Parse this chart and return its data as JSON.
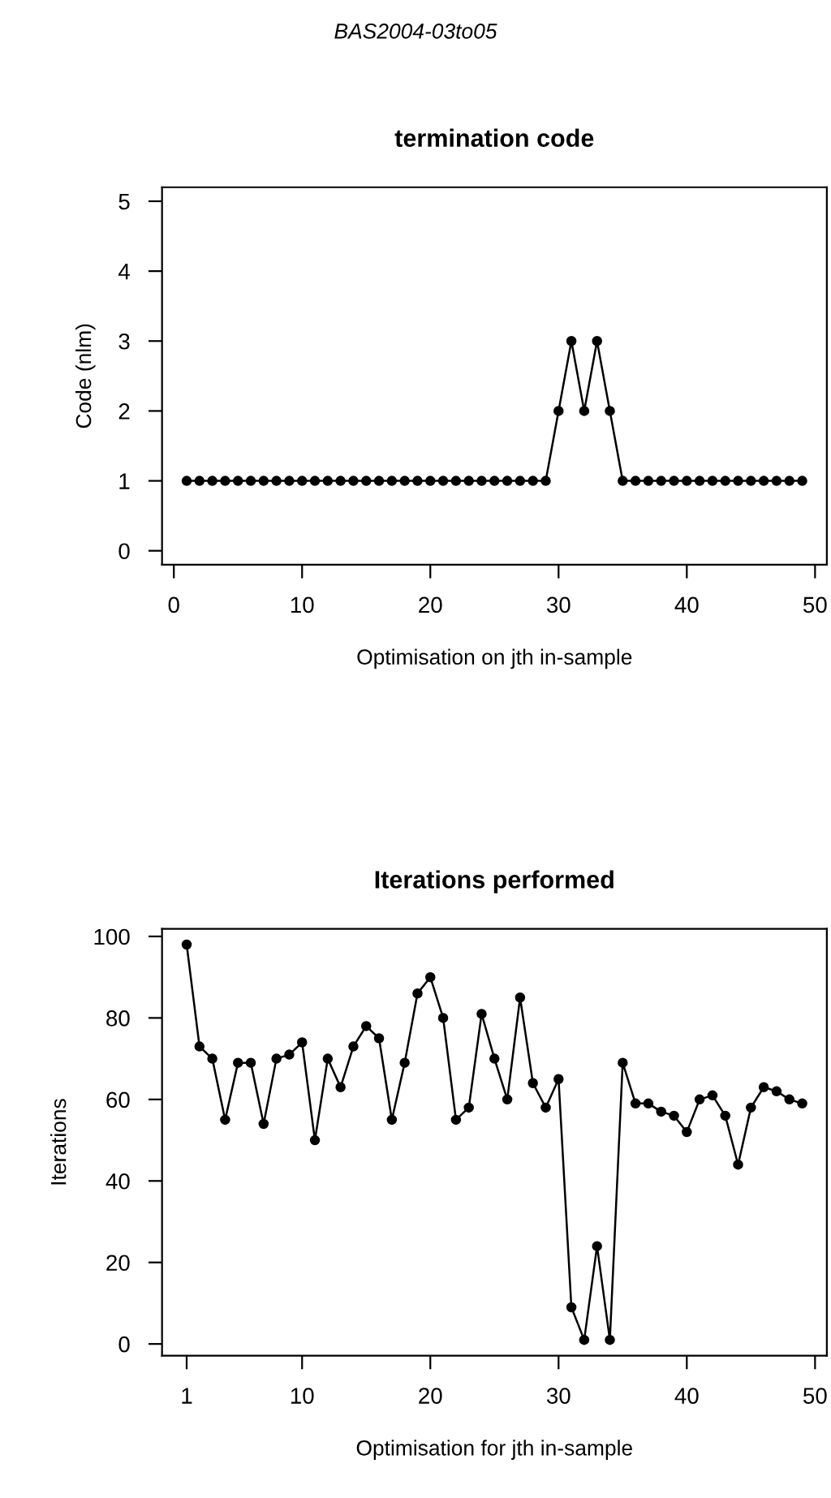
{
  "chart_data": [
    {
      "type": "line",
      "title": "termination code",
      "xlabel": "Optimisation on jth in-sample",
      "ylabel": "Code (nlm)",
      "annotations": [
        "BAS2004-03to05"
      ],
      "marker": "circle",
      "line_style": "solid",
      "grid": false,
      "xlim": [
        -0.92,
        50.92
      ],
      "ylim": [
        -0.2,
        5.2
      ],
      "xticks": [
        0,
        10,
        20,
        30,
        40,
        50
      ],
      "yticks": [
        0,
        1,
        2,
        3,
        4,
        5
      ],
      "x": [
        1,
        2,
        3,
        4,
        5,
        6,
        7,
        8,
        9,
        10,
        11,
        12,
        13,
        14,
        15,
        16,
        17,
        18,
        19,
        20,
        21,
        22,
        23,
        24,
        25,
        26,
        27,
        28,
        29,
        30,
        31,
        32,
        33,
        34,
        35,
        36,
        37,
        38,
        39,
        40,
        41,
        42,
        43,
        44,
        45,
        46,
        47,
        48,
        49
      ],
      "series": [
        {
          "color": "#000000",
          "values": [
            1,
            1,
            1,
            1,
            1,
            1,
            1,
            1,
            1,
            1,
            1,
            1,
            1,
            1,
            1,
            1,
            1,
            1,
            1,
            1,
            1,
            1,
            1,
            1,
            1,
            1,
            1,
            1,
            1,
            2,
            3,
            2,
            3,
            2,
            1,
            1,
            1,
            1,
            1,
            1,
            1,
            1,
            1,
            1,
            1,
            1,
            1,
            1,
            1
          ]
        }
      ]
    },
    {
      "type": "line",
      "title": "Iterations performed",
      "xlabel": "Optimisation for jth in-sample",
      "ylabel": "Iterations",
      "marker": "circle",
      "line_style": "solid",
      "grid": false,
      "xlim": [
        -0.92,
        50.92
      ],
      "ylim": [
        -2.88,
        101.88
      ],
      "xticks": [
        1,
        10,
        20,
        30,
        40,
        50
      ],
      "yticks": [
        0,
        20,
        40,
        60,
        80,
        100
      ],
      "x": [
        1,
        2,
        3,
        4,
        5,
        6,
        7,
        8,
        9,
        10,
        11,
        12,
        13,
        14,
        15,
        16,
        17,
        18,
        19,
        20,
        21,
        22,
        23,
        24,
        25,
        26,
        27,
        28,
        29,
        30,
        31,
        32,
        33,
        34,
        35,
        36,
        37,
        38,
        39,
        40,
        41,
        42,
        43,
        44,
        45,
        46,
        47,
        48,
        49
      ],
      "series": [
        {
          "color": "#000000",
          "values": [
            98,
            73,
            70,
            55,
            69,
            69,
            54,
            70,
            71,
            74,
            50,
            70,
            63,
            73,
            78,
            75,
            55,
            69,
            86,
            90,
            80,
            55,
            58,
            81,
            70,
            60,
            85,
            64,
            58,
            65,
            9,
            1,
            24,
            1,
            69,
            59,
            59,
            57,
            56,
            52,
            60,
            61,
            56,
            44,
            58,
            63,
            62,
            60,
            59
          ]
        }
      ]
    }
  ]
}
